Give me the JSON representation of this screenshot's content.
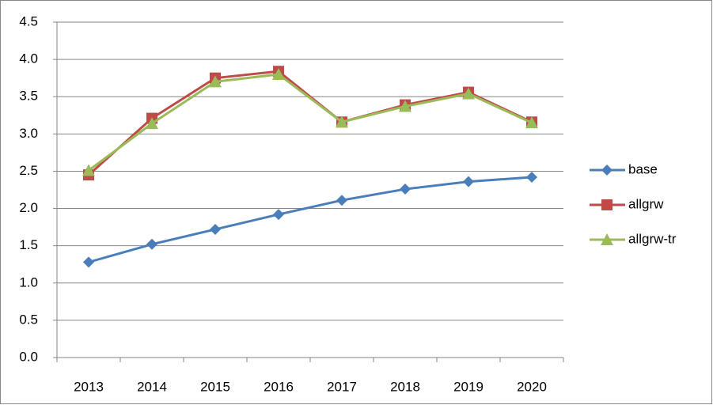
{
  "chart_data": {
    "type": "line",
    "categories": [
      "2013",
      "2014",
      "2015",
      "2016",
      "2017",
      "2018",
      "2019",
      "2020"
    ],
    "series": [
      {
        "name": "base",
        "color": "#4a7ebb",
        "marker": "diamond",
        "values": [
          1.28,
          1.52,
          1.72,
          1.92,
          2.11,
          2.26,
          2.36,
          2.42
        ]
      },
      {
        "name": "allgrw",
        "color": "#be4b48",
        "marker": "square",
        "values": [
          2.45,
          3.21,
          3.75,
          3.84,
          3.16,
          3.39,
          3.56,
          3.16
        ]
      },
      {
        "name": "allgrw-tr",
        "color": "#9bbb59",
        "marker": "triangle",
        "values": [
          2.51,
          3.14,
          3.7,
          3.8,
          3.16,
          3.37,
          3.54,
          3.15
        ]
      }
    ],
    "ylim": [
      0,
      4.5
    ],
    "yticks": [
      {
        "value": 0,
        "label": "0.0"
      },
      0.5,
      {
        "value": 1,
        "label": "1.0"
      },
      1.5,
      {
        "value": 2,
        "label": "2.0"
      },
      2.5,
      {
        "value": 3,
        "label": "3.0"
      },
      3.5,
      {
        "value": 4,
        "label": "4.0"
      },
      4.5
    ],
    "grid": true,
    "legend": "right"
  }
}
